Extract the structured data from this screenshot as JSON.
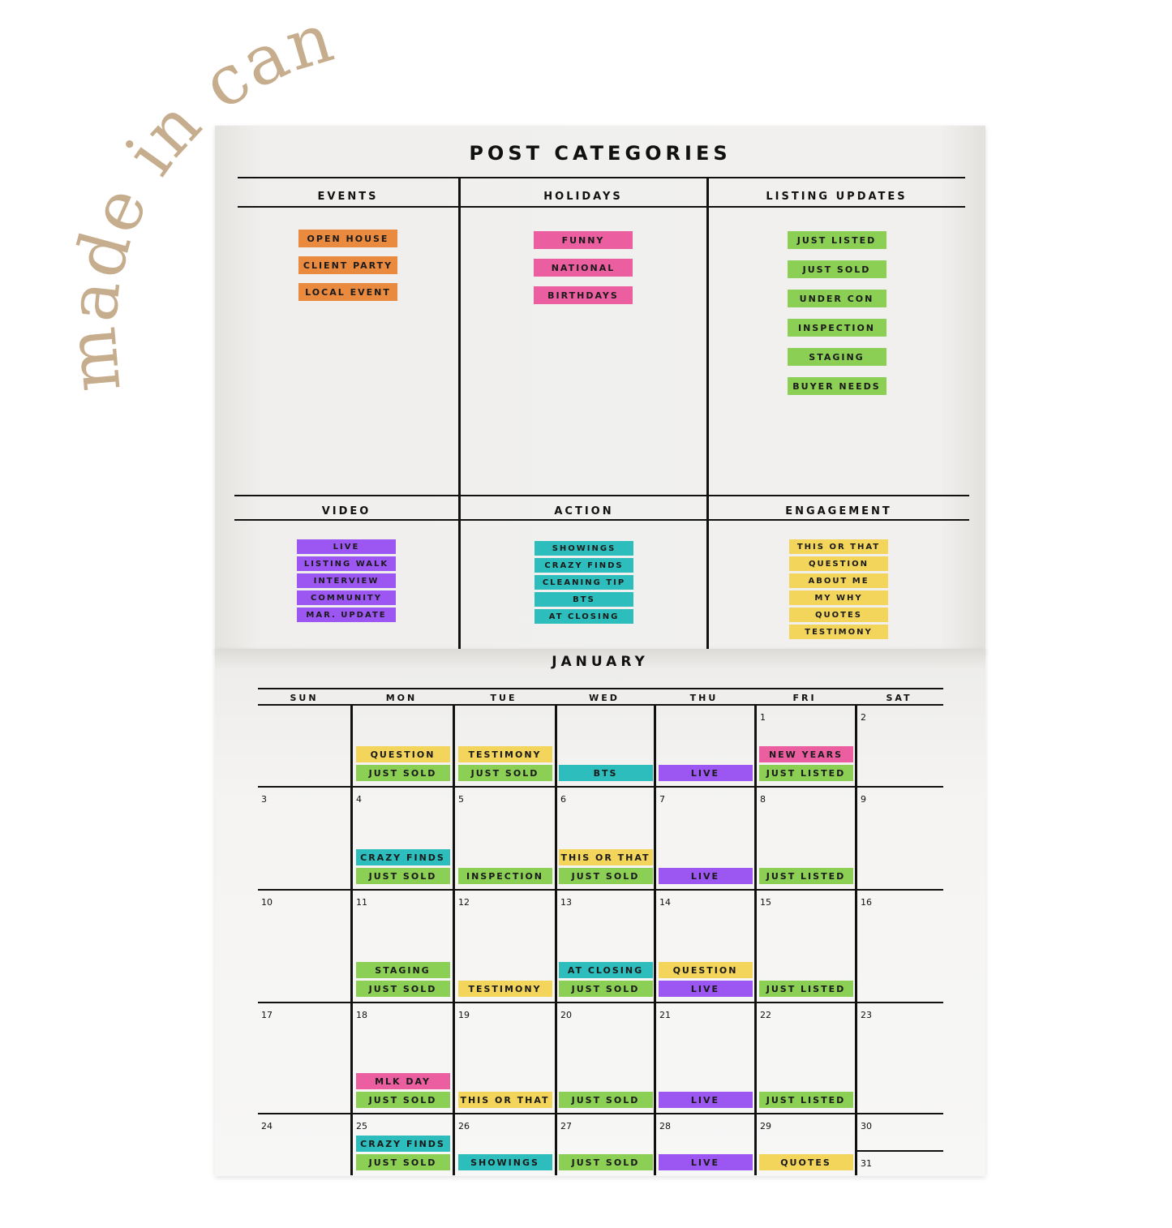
{
  "watermark": "made in canva",
  "colors": {
    "orange": "#ea8a3f",
    "pink": "#eb5fa0",
    "green": "#8bcf55",
    "purple": "#9c57f2",
    "teal": "#2dbdbd",
    "yellow": "#f4d55c",
    "watermark": "#c6ad8e"
  },
  "categories": {
    "title": "POST CATEGORIES",
    "groups": [
      {
        "name": "EVENTS",
        "color": "orange",
        "tags": [
          "OPEN HOUSE",
          "CLIENT PARTY",
          "LOCAL EVENT"
        ]
      },
      {
        "name": "HOLIDAYS",
        "color": "pink",
        "tags": [
          "FUNNY",
          "NATIONAL",
          "BIRTHDAYS"
        ]
      },
      {
        "name": "LISTING UPDATES",
        "color": "green",
        "tags": [
          "JUST LISTED",
          "JUST SOLD",
          "UNDER CON",
          "INSPECTION",
          "STAGING",
          "BUYER NEEDS"
        ]
      },
      {
        "name": "VIDEO",
        "color": "purple",
        "tags": [
          "LIVE",
          "LISTING WALK",
          "INTERVIEW",
          "COMMUNITY",
          "MAR. UPDATE"
        ]
      },
      {
        "name": "ACTION",
        "color": "teal",
        "tags": [
          "SHOWINGS",
          "CRAZY FINDS",
          "CLEANING TIP",
          "BTS",
          "AT CLOSING"
        ]
      },
      {
        "name": "ENGAGEMENT",
        "color": "yellow",
        "tags": [
          "THIS OR THAT",
          "QUESTION",
          "ABOUT ME",
          "MY WHY",
          "QUOTES",
          "TESTIMONY"
        ]
      }
    ]
  },
  "calendar": {
    "month": "JANUARY",
    "days_of_week": [
      "SUN",
      "MON",
      "TUE",
      "WED",
      "THU",
      "FRI",
      "SAT"
    ],
    "weeks": [
      [
        {
          "day": "",
          "tags": []
        },
        {
          "day": "",
          "tags": [
            {
              "label": "QUESTION",
              "color": "yellow"
            },
            {
              "label": "JUST SOLD",
              "color": "green"
            }
          ]
        },
        {
          "day": "",
          "tags": [
            {
              "label": "TESTIMONY",
              "color": "yellow"
            },
            {
              "label": "JUST SOLD",
              "color": "green"
            }
          ]
        },
        {
          "day": "",
          "tags": [
            {
              "label": "BTS",
              "color": "teal"
            }
          ]
        },
        {
          "day": "",
          "tags": [
            {
              "label": "LIVE",
              "color": "purple"
            }
          ]
        },
        {
          "day": "1",
          "tags": [
            {
              "label": "NEW YEARS",
              "color": "pink"
            },
            {
              "label": "JUST LISTED",
              "color": "green"
            }
          ]
        },
        {
          "day": "2",
          "tags": []
        }
      ],
      [
        {
          "day": "3",
          "tags": []
        },
        {
          "day": "4",
          "tags": [
            {
              "label": "CRAZY FINDS",
              "color": "teal"
            },
            {
              "label": "JUST SOLD",
              "color": "green"
            }
          ]
        },
        {
          "day": "5",
          "tags": [
            {
              "label": "INSPECTION",
              "color": "green"
            }
          ]
        },
        {
          "day": "6",
          "tags": [
            {
              "label": "THIS OR THAT",
              "color": "yellow"
            },
            {
              "label": "JUST SOLD",
              "color": "green"
            }
          ]
        },
        {
          "day": "7",
          "tags": [
            {
              "label": "LIVE",
              "color": "purple"
            }
          ]
        },
        {
          "day": "8",
          "tags": [
            {
              "label": "JUST LISTED",
              "color": "green"
            }
          ]
        },
        {
          "day": "9",
          "tags": []
        }
      ],
      [
        {
          "day": "10",
          "tags": []
        },
        {
          "day": "11",
          "tags": [
            {
              "label": "STAGING",
              "color": "green"
            },
            {
              "label": "JUST SOLD",
              "color": "green"
            }
          ]
        },
        {
          "day": "12",
          "tags": [
            {
              "label": "TESTIMONY",
              "color": "yellow"
            }
          ]
        },
        {
          "day": "13",
          "tags": [
            {
              "label": "AT CLOSING",
              "color": "teal"
            },
            {
              "label": "JUST SOLD",
              "color": "green"
            }
          ]
        },
        {
          "day": "14",
          "tags": [
            {
              "label": "QUESTION",
              "color": "yellow"
            },
            {
              "label": "LIVE",
              "color": "purple"
            }
          ]
        },
        {
          "day": "15",
          "tags": [
            {
              "label": "JUST LISTED",
              "color": "green"
            }
          ]
        },
        {
          "day": "16",
          "tags": []
        }
      ],
      [
        {
          "day": "17",
          "tags": []
        },
        {
          "day": "18",
          "tags": [
            {
              "label": "MLK DAY",
              "color": "pink"
            },
            {
              "label": "JUST SOLD",
              "color": "green"
            }
          ]
        },
        {
          "day": "19",
          "tags": [
            {
              "label": "THIS OR THAT",
              "color": "yellow"
            }
          ]
        },
        {
          "day": "20",
          "tags": [
            {
              "label": "JUST SOLD",
              "color": "green"
            }
          ]
        },
        {
          "day": "21",
          "tags": [
            {
              "label": "LIVE",
              "color": "purple"
            }
          ]
        },
        {
          "day": "22",
          "tags": [
            {
              "label": "JUST LISTED",
              "color": "green"
            }
          ]
        },
        {
          "day": "23",
          "tags": []
        }
      ],
      [
        {
          "day": "24",
          "tags": []
        },
        {
          "day": "25",
          "tags": [
            {
              "label": "CRAZY FINDS",
              "color": "teal"
            },
            {
              "label": "JUST SOLD",
              "color": "green"
            }
          ]
        },
        {
          "day": "26",
          "tags": [
            {
              "label": "SHOWINGS",
              "color": "teal"
            }
          ]
        },
        {
          "day": "27",
          "tags": [
            {
              "label": "JUST SOLD",
              "color": "green"
            }
          ]
        },
        {
          "day": "28",
          "tags": [
            {
              "label": "LIVE",
              "color": "purple"
            }
          ]
        },
        {
          "day": "29",
          "tags": [
            {
              "label": "QUOTES",
              "color": "yellow"
            }
          ]
        },
        {
          "day": "30",
          "day2": "31",
          "tags": []
        }
      ]
    ]
  }
}
